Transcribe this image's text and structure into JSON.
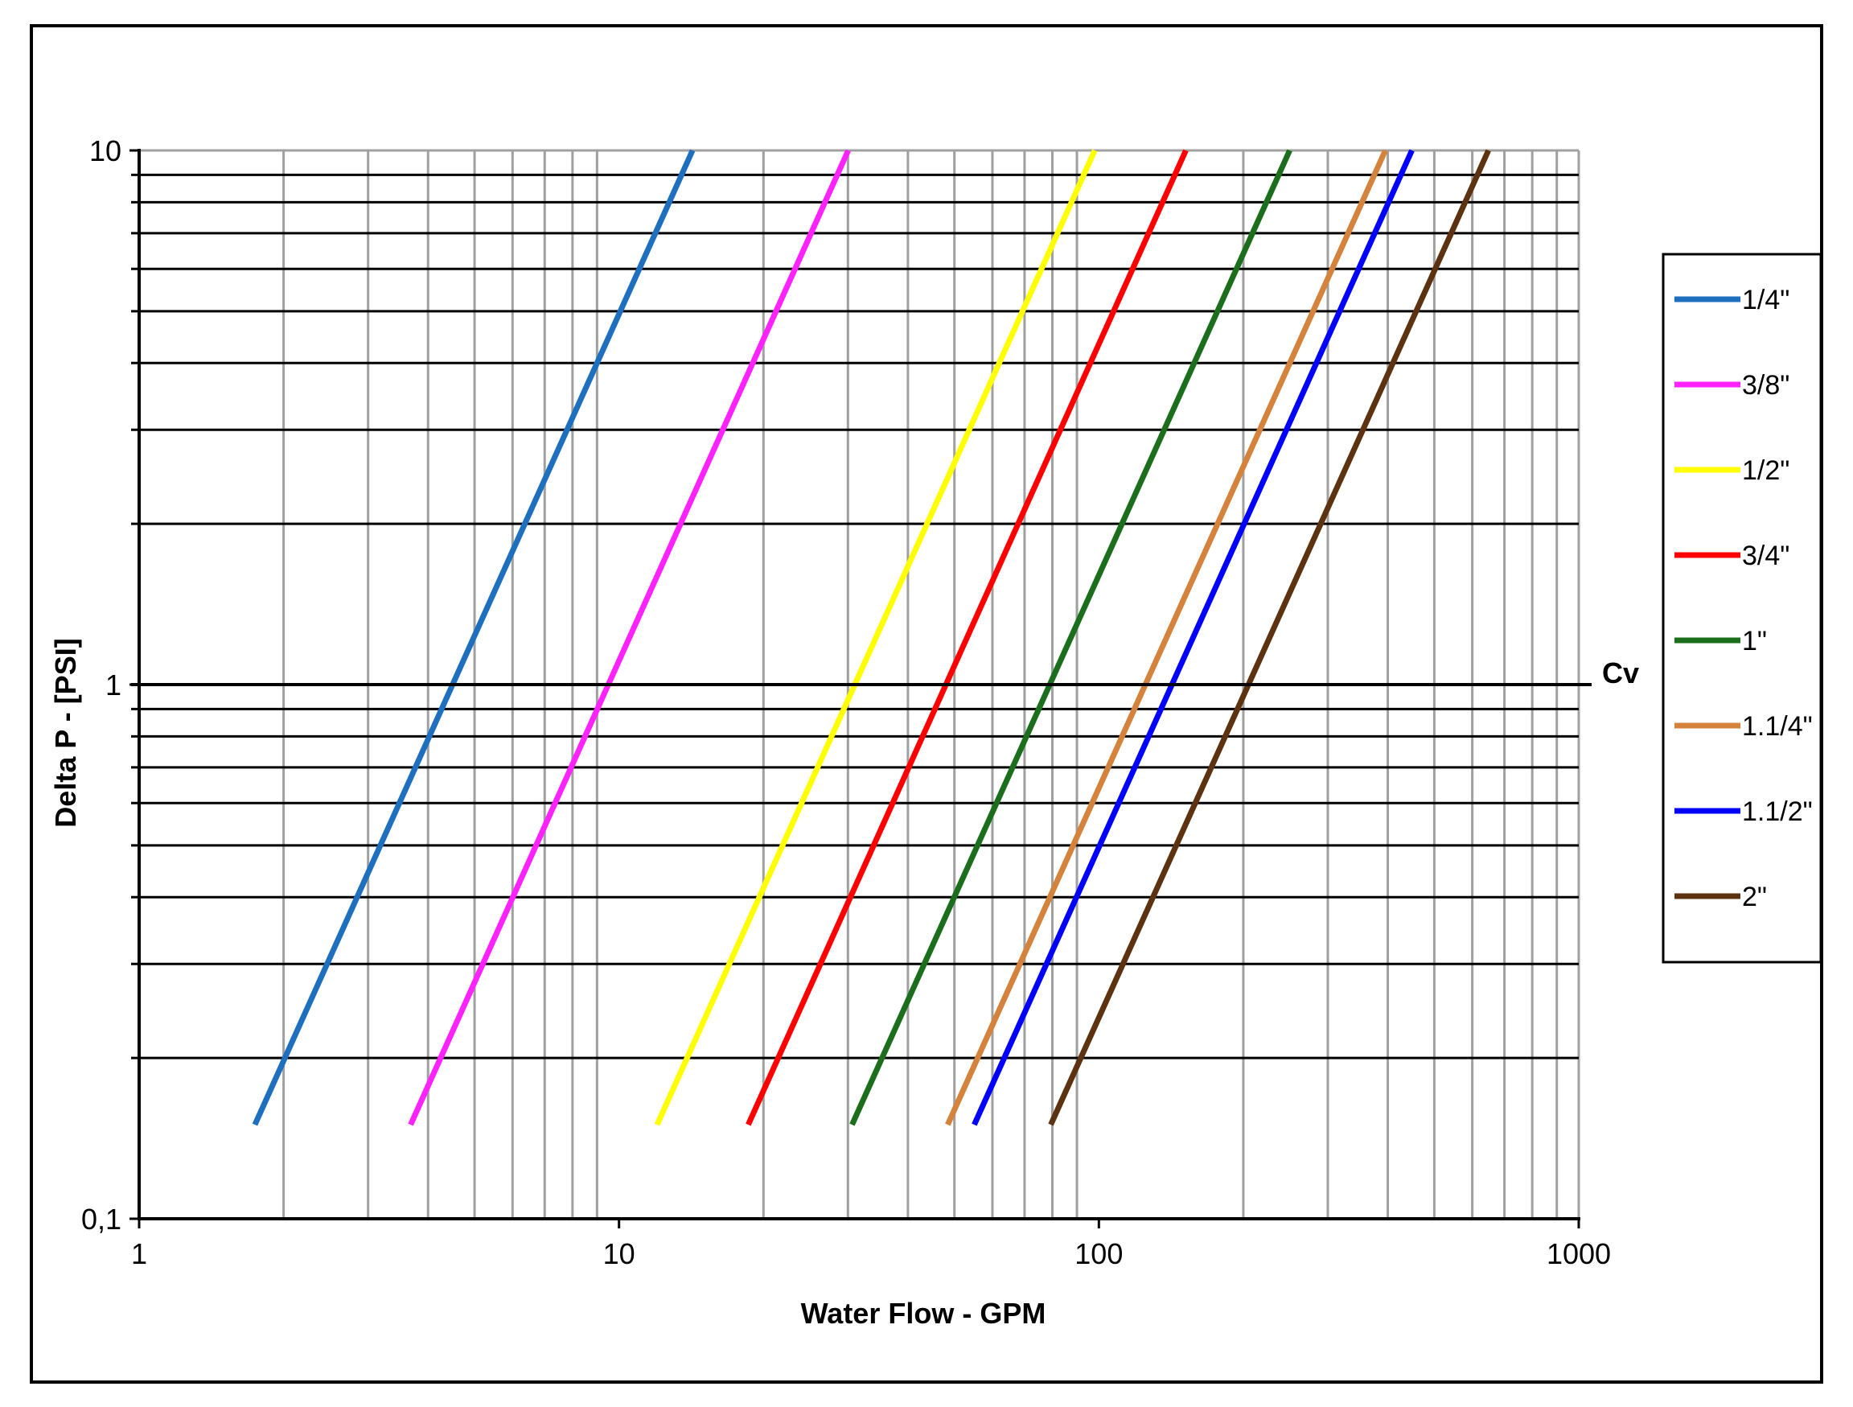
{
  "chart_data": {
    "type": "line",
    "title": "",
    "xlabel": "Water Flow - GPM",
    "ylabel": "Delta P - [PSI]",
    "x_scale": "log",
    "y_scale": "log",
    "xlim": [
      1,
      1000
    ],
    "ylim": [
      0.1,
      10
    ],
    "x_ticks": [
      {
        "value": 1,
        "label": "1"
      },
      {
        "value": 10,
        "label": "10"
      },
      {
        "value": 100,
        "label": "100"
      },
      {
        "value": 1000,
        "label": "1000"
      }
    ],
    "y_ticks": [
      {
        "value": 0.1,
        "label": "0,1"
      },
      {
        "value": 1,
        "label": "1"
      },
      {
        "value": 10,
        "label": "10"
      }
    ],
    "grid": true,
    "legend_position": "right",
    "reference_line": {
      "y": 1,
      "label": "Cv"
    },
    "y_range_series": [
      0.15,
      10
    ],
    "series": [
      {
        "name": "1/4\"",
        "color": "#1f6fbf",
        "cv": 4.5
      },
      {
        "name": "3/8\"",
        "color": "#ff22ff",
        "cv": 9.5
      },
      {
        "name": "1/2\"",
        "color": "#ffff00",
        "cv": 31
      },
      {
        "name": "3/4\"",
        "color": "#ff0000",
        "cv": 48
      },
      {
        "name": "1\"",
        "color": "#1b6e1b",
        "cv": 79
      },
      {
        "name": "1.1/4\"",
        "color": "#d4823c",
        "cv": 125
      },
      {
        "name": "1.1/2\"",
        "color": "#0000ff",
        "cv": 142
      },
      {
        "name": "2\"",
        "color": "#5c3210",
        "cv": 205
      }
    ]
  }
}
